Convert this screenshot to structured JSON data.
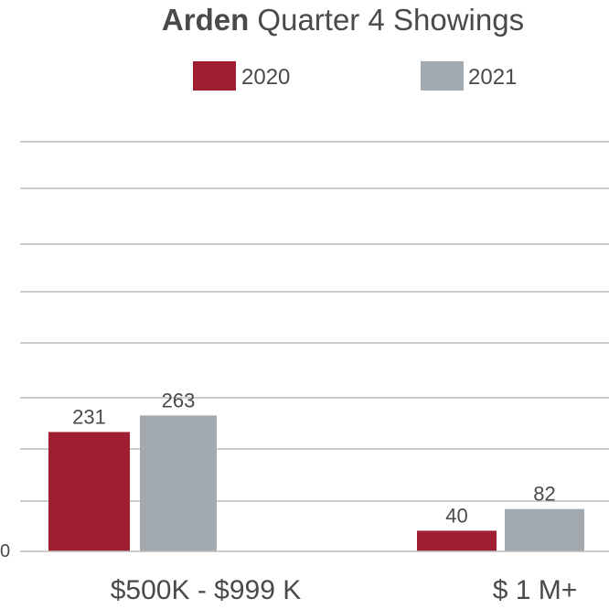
{
  "chart_data": {
    "type": "bar",
    "title_bold": "Arden",
    "title_rest": " Quarter 4 Showings",
    "categories": [
      "$500K - $999 K",
      "$ 1 M+"
    ],
    "series": [
      {
        "name": "2020",
        "values": [
          231,
          40
        ],
        "color": "#A01E32"
      },
      {
        "name": "2021",
        "values": [
          263,
          82
        ],
        "color": "#A3AAAF"
      }
    ],
    "ylim": [
      0,
      420
    ],
    "y_tick_label": "0",
    "grid": true,
    "legend_position": "top-center"
  },
  "colors": {
    "text": "#4a4a4a",
    "grid": "#bdbdbd"
  }
}
